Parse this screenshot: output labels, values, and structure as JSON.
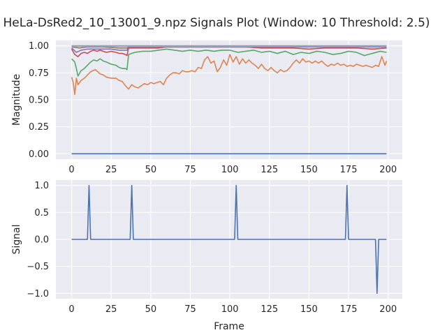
{
  "figure": {
    "title": "HeLa-DsRed2_10_13001_9.npz Signals Plot (Window: 10 Threshold: 2.5)"
  },
  "theme": {
    "axes_bg": "#eaeaf2",
    "grid": "#ffffff",
    "colors": [
      "#4c72b0",
      "#dd8452",
      "#55a868",
      "#c44e52",
      "#8172b3",
      "#937860",
      "#da8bc3",
      "#8c8c8c",
      "#ccb974",
      "#64b5cd"
    ]
  },
  "chart_data": [
    {
      "type": "line",
      "title": "",
      "xlabel": "",
      "ylabel": "Magnitude",
      "xlim": [
        -9.95,
        208.95
      ],
      "ylim": [
        -0.05,
        1.05
      ],
      "xticks": [
        0,
        25,
        50,
        75,
        100,
        125,
        150,
        175,
        200
      ],
      "yticks": [
        0.0,
        0.25,
        0.5,
        0.75,
        1.0
      ],
      "ytick_labels": [
        "0.00",
        "0.25",
        "0.50",
        "0.75",
        "1.00"
      ],
      "grid": true,
      "legend": "none",
      "x_range": [
        0,
        199
      ],
      "series": [
        {
          "color_index": 0,
          "keyframes": [
            [
              0,
              0.0
            ],
            [
              199,
              0.0
            ]
          ]
        },
        {
          "color_index": 1,
          "keyframes": [
            [
              0,
              0.71
            ],
            [
              1,
              0.66
            ],
            [
              2,
              0.55
            ],
            [
              3,
              0.7
            ],
            [
              4,
              0.64
            ],
            [
              6,
              0.68
            ],
            [
              8,
              0.7
            ],
            [
              10,
              0.73
            ],
            [
              12,
              0.76
            ],
            [
              15,
              0.78
            ],
            [
              18,
              0.74
            ],
            [
              20,
              0.73
            ],
            [
              22,
              0.71
            ],
            [
              25,
              0.7
            ],
            [
              28,
              0.7
            ],
            [
              30,
              0.68
            ],
            [
              32,
              0.67
            ],
            [
              34,
              0.63
            ],
            [
              36,
              0.6
            ],
            [
              38,
              0.64
            ],
            [
              40,
              0.62
            ],
            [
              42,
              0.61
            ],
            [
              44,
              0.63
            ],
            [
              46,
              0.65
            ],
            [
              48,
              0.64
            ],
            [
              50,
              0.66
            ],
            [
              52,
              0.65
            ],
            [
              54,
              0.66
            ],
            [
              56,
              0.67
            ],
            [
              58,
              0.64
            ],
            [
              60,
              0.7
            ],
            [
              62,
              0.73
            ],
            [
              64,
              0.75
            ],
            [
              66,
              0.75
            ],
            [
              68,
              0.74
            ],
            [
              70,
              0.77
            ],
            [
              72,
              0.76
            ],
            [
              74,
              0.76
            ],
            [
              76,
              0.77
            ],
            [
              78,
              0.76
            ],
            [
              80,
              0.8
            ],
            [
              82,
              0.79
            ],
            [
              84,
              0.87
            ],
            [
              86,
              0.9
            ],
            [
              88,
              0.84
            ],
            [
              90,
              0.86
            ],
            [
              92,
              0.76
            ],
            [
              94,
              0.8
            ],
            [
              96,
              0.87
            ],
            [
              98,
              0.82
            ],
            [
              100,
              0.92
            ],
            [
              102,
              0.85
            ],
            [
              104,
              0.9
            ],
            [
              106,
              0.83
            ],
            [
              108,
              0.88
            ],
            [
              110,
              0.84
            ],
            [
              112,
              0.87
            ],
            [
              114,
              0.84
            ],
            [
              116,
              0.82
            ],
            [
              118,
              0.79
            ],
            [
              120,
              0.83
            ],
            [
              122,
              0.79
            ],
            [
              124,
              0.77
            ],
            [
              126,
              0.8
            ],
            [
              128,
              0.77
            ],
            [
              130,
              0.75
            ],
            [
              132,
              0.78
            ],
            [
              134,
              0.76
            ],
            [
              136,
              0.77
            ],
            [
              138,
              0.8
            ],
            [
              140,
              0.84
            ],
            [
              142,
              0.87
            ],
            [
              144,
              0.84
            ],
            [
              146,
              0.88
            ],
            [
              148,
              0.85
            ],
            [
              150,
              0.86
            ],
            [
              152,
              0.84
            ],
            [
              154,
              0.86
            ],
            [
              156,
              0.84
            ],
            [
              158,
              0.86
            ],
            [
              160,
              0.83
            ],
            [
              162,
              0.81
            ],
            [
              164,
              0.83
            ],
            [
              166,
              0.82
            ],
            [
              168,
              0.84
            ],
            [
              170,
              0.82
            ],
            [
              172,
              0.83
            ],
            [
              174,
              0.81
            ],
            [
              176,
              0.82
            ],
            [
              178,
              0.81
            ],
            [
              180,
              0.83
            ],
            [
              182,
              0.82
            ],
            [
              184,
              0.81
            ],
            [
              186,
              0.82
            ],
            [
              188,
              0.81
            ],
            [
              190,
              0.8
            ],
            [
              192,
              0.82
            ],
            [
              194,
              0.81
            ],
            [
              196,
              0.9
            ],
            [
              198,
              0.82
            ],
            [
              199,
              0.86
            ]
          ]
        },
        {
          "color_index": 2,
          "keyframes": [
            [
              0,
              0.88
            ],
            [
              2,
              0.85
            ],
            [
              3,
              0.79
            ],
            [
              4,
              0.72
            ],
            [
              6,
              0.77
            ],
            [
              8,
              0.79
            ],
            [
              10,
              0.82
            ],
            [
              12,
              0.85
            ],
            [
              14,
              0.87
            ],
            [
              16,
              0.86
            ],
            [
              18,
              0.88
            ],
            [
              20,
              0.86
            ],
            [
              22,
              0.85
            ],
            [
              25,
              0.83
            ],
            [
              28,
              0.82
            ],
            [
              30,
              0.8
            ],
            [
              32,
              0.79
            ],
            [
              34,
              0.79
            ],
            [
              35,
              0.78
            ],
            [
              36,
              0.92
            ],
            [
              38,
              0.93
            ],
            [
              40,
              0.94
            ],
            [
              45,
              0.95
            ],
            [
              50,
              0.95
            ],
            [
              55,
              0.96
            ],
            [
              60,
              0.97
            ],
            [
              65,
              0.96
            ],
            [
              70,
              0.95
            ],
            [
              75,
              0.96
            ],
            [
              80,
              0.95
            ],
            [
              85,
              0.96
            ],
            [
              90,
              0.95
            ],
            [
              95,
              0.96
            ],
            [
              100,
              0.96
            ],
            [
              105,
              0.94
            ],
            [
              110,
              0.95
            ],
            [
              115,
              0.96
            ],
            [
              120,
              0.94
            ],
            [
              125,
              0.95
            ],
            [
              130,
              0.93
            ],
            [
              135,
              0.95
            ],
            [
              140,
              0.92
            ],
            [
              145,
              0.94
            ],
            [
              150,
              0.93
            ],
            [
              155,
              0.95
            ],
            [
              160,
              0.94
            ],
            [
              165,
              0.92
            ],
            [
              170,
              0.93
            ],
            [
              175,
              0.95
            ],
            [
              180,
              0.94
            ],
            [
              185,
              0.91
            ],
            [
              190,
              0.93
            ],
            [
              195,
              0.95
            ],
            [
              199,
              0.94
            ]
          ]
        },
        {
          "color_index": 3,
          "keyframes": [
            [
              0,
              0.97
            ],
            [
              2,
              0.92
            ],
            [
              4,
              0.9
            ],
            [
              6,
              0.93
            ],
            [
              8,
              0.94
            ],
            [
              10,
              0.93
            ],
            [
              12,
              0.95
            ],
            [
              14,
              0.96
            ],
            [
              16,
              0.95
            ],
            [
              18,
              0.96
            ],
            [
              20,
              0.95
            ],
            [
              22,
              0.94
            ],
            [
              25,
              0.95
            ],
            [
              28,
              0.94
            ],
            [
              30,
              0.93
            ],
            [
              32,
              0.93
            ],
            [
              34,
              0.92
            ],
            [
              35,
              0.91
            ],
            [
              36,
              0.98
            ],
            [
              40,
              0.98
            ],
            [
              50,
              0.98
            ],
            [
              55,
              0.98
            ],
            [
              60,
              0.99
            ],
            [
              70,
              0.99
            ],
            [
              80,
              0.99
            ],
            [
              90,
              0.99
            ],
            [
              100,
              0.99
            ],
            [
              110,
              0.99
            ],
            [
              120,
              0.98
            ],
            [
              130,
              0.98
            ],
            [
              140,
              0.98
            ],
            [
              150,
              0.97
            ],
            [
              160,
              0.98
            ],
            [
              170,
              0.98
            ],
            [
              180,
              0.98
            ],
            [
              190,
              0.97
            ],
            [
              199,
              0.98
            ]
          ]
        },
        {
          "color_index": 4,
          "keyframes": [
            [
              0,
              0.98
            ],
            [
              3,
              0.94
            ],
            [
              6,
              0.96
            ],
            [
              10,
              0.97
            ],
            [
              15,
              0.97
            ],
            [
              20,
              0.97
            ],
            [
              25,
              0.97
            ],
            [
              30,
              0.96
            ],
            [
              35,
              0.96
            ],
            [
              36,
              0.99
            ],
            [
              50,
              0.99
            ],
            [
              60,
              0.99
            ],
            [
              80,
              0.99
            ],
            [
              100,
              0.99
            ],
            [
              120,
              0.99
            ],
            [
              140,
              0.99
            ],
            [
              160,
              0.99
            ],
            [
              180,
              0.99
            ],
            [
              199,
              0.99
            ]
          ]
        },
        {
          "color_index": 5,
          "keyframes": [
            [
              0,
              0.99
            ],
            [
              5,
              0.98
            ],
            [
              10,
              0.99
            ],
            [
              20,
              0.99
            ],
            [
              30,
              0.98
            ],
            [
              35,
              0.98
            ],
            [
              36,
              0.99
            ],
            [
              60,
              0.995
            ],
            [
              100,
              0.995
            ],
            [
              150,
              0.995
            ],
            [
              199,
              0.995
            ]
          ]
        },
        {
          "color_index": 6,
          "keyframes": [
            [
              0,
              0.995
            ],
            [
              199,
              0.995
            ]
          ]
        },
        {
          "color_index": 7,
          "keyframes": [
            [
              0,
              1.0
            ],
            [
              199,
              1.0
            ]
          ]
        },
        {
          "color_index": 8,
          "keyframes": [
            [
              0,
              1.0
            ],
            [
              199,
              1.0
            ]
          ]
        },
        {
          "color_index": 9,
          "keyframes": [
            [
              0,
              1.0
            ],
            [
              199,
              1.0
            ]
          ]
        }
      ]
    },
    {
      "type": "line",
      "title": "",
      "xlabel": "Frame",
      "ylabel": "Signal",
      "xlim": [
        -9.95,
        208.95
      ],
      "ylim": [
        -1.1,
        1.1
      ],
      "xticks": [
        0,
        25,
        50,
        75,
        100,
        125,
        150,
        175,
        200
      ],
      "yticks": [
        -1.0,
        -0.5,
        0.0,
        0.5,
        1.0
      ],
      "ytick_labels": [
        "−1.0",
        "−0.5",
        "0.0",
        "0.5",
        "1.0"
      ],
      "grid": true,
      "legend": "none",
      "x_range": [
        0,
        199
      ],
      "series": [
        {
          "color_index": 0,
          "spikes": [
            [
              11,
              1
            ],
            [
              38,
              1
            ],
            [
              104,
              1
            ],
            [
              174,
              1
            ],
            [
              193,
              -1
            ]
          ]
        }
      ]
    }
  ]
}
